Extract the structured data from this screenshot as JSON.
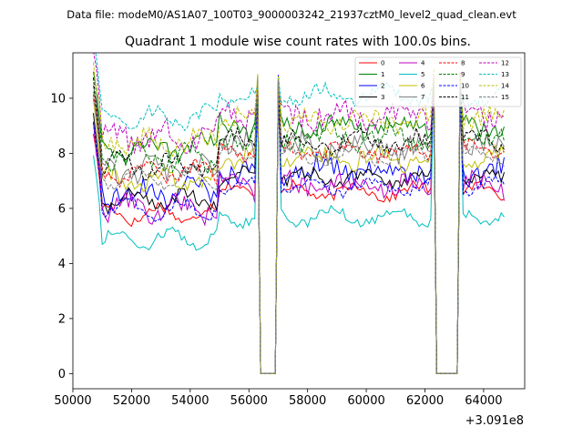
{
  "header": {
    "data_file_label": "Data file: modeM0/AS1A07_100T03_9000003242_21937cztM0_level2_quad_clean.evt"
  },
  "chart_data": {
    "type": "line",
    "title": "Quadrant 1 module wise count rates with 100.0s bins.",
    "xlabel": "",
    "ylabel": "",
    "x_offset_label": "+3.091e8",
    "xlim": [
      50000,
      65400
    ],
    "ylim": [
      -0.55,
      11.65
    ],
    "xticks": [
      50000,
      52000,
      54000,
      56000,
      58000,
      60000,
      62000,
      64000
    ],
    "xtick_labels": [
      "50000",
      "52000",
      "54000",
      "56000",
      "58000",
      "60000",
      "62000",
      "64000"
    ],
    "yticks": [
      0,
      2,
      4,
      6,
      8,
      10
    ],
    "ytick_labels": [
      "0",
      "2",
      "4",
      "6",
      "8",
      "10"
    ],
    "legend_position": "top-right",
    "x_range": [
      50700,
      64700
    ],
    "bin_width": 100,
    "gaps": [
      [
        56400,
        56900
      ],
      [
        62400,
        63100
      ]
    ],
    "series": [
      {
        "name": "0",
        "color": "#ff0000",
        "style": "solid",
        "level": 6.3
      },
      {
        "name": "1",
        "color": "#008000",
        "style": "solid",
        "level": 8.7
      },
      {
        "name": "2",
        "color": "#0000ff",
        "style": "solid",
        "level": 7.1
      },
      {
        "name": "3",
        "color": "#000000",
        "style": "solid",
        "level": 6.8
      },
      {
        "name": "4",
        "color": "#bf00bf",
        "style": "solid",
        "level": 6.5
      },
      {
        "name": "5",
        "color": "#00bfbf",
        "style": "solid",
        "level": 5.4
      },
      {
        "name": "6",
        "color": "#bfbf00",
        "style": "solid",
        "level": 7.5
      },
      {
        "name": "7",
        "color": "#808080",
        "style": "solid",
        "level": 7.9
      },
      {
        "name": "8",
        "color": "#ff0000",
        "style": "dashed",
        "level": 7.8
      },
      {
        "name": "9",
        "color": "#008000",
        "style": "dashed",
        "level": 8.3
      },
      {
        "name": "10",
        "color": "#0000ff",
        "style": "dashed",
        "level": 6.5
      },
      {
        "name": "11",
        "color": "#000000",
        "style": "dashed",
        "level": 8.1
      },
      {
        "name": "12",
        "color": "#bf00bf",
        "style": "dashed",
        "level": 9.1
      },
      {
        "name": "13",
        "color": "#00bfbf",
        "style": "dashed",
        "level": 9.8
      },
      {
        "name": "14",
        "color": "#bfbf00",
        "style": "dashed",
        "level": 8.9
      },
      {
        "name": "15",
        "color": "#808080",
        "style": "dashed",
        "level": 7.6
      }
    ]
  }
}
